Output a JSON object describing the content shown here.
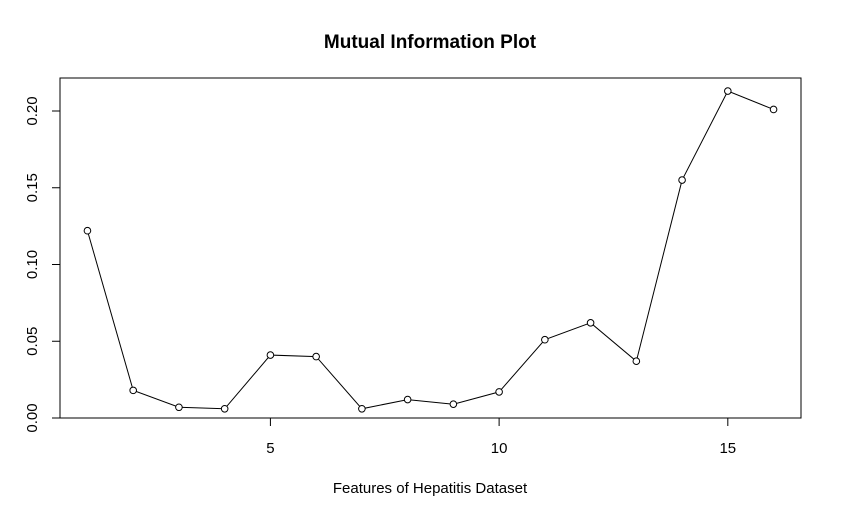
{
  "chart_data": {
    "type": "line",
    "title": "Mutual Information Plot",
    "xlabel": "Features of Hepatitis Dataset",
    "ylabel": "",
    "x": [
      1,
      2,
      3,
      4,
      5,
      6,
      7,
      8,
      9,
      10,
      11,
      12,
      13,
      14,
      15,
      16
    ],
    "series": [
      {
        "values": [
          0.122,
          0.018,
          0.007,
          0.006,
          0.041,
          0.04,
          0.006,
          0.012,
          0.009,
          0.017,
          0.051,
          0.062,
          0.037,
          0.155,
          0.213,
          0.201
        ],
        "color": "#000000",
        "marker": "open-circle"
      }
    ],
    "xticks": [
      5,
      10,
      15
    ],
    "xtick_labels": [
      "5",
      "10",
      "15"
    ],
    "yticks": [
      0.0,
      0.05,
      0.1,
      0.15,
      0.2
    ],
    "ytick_labels": [
      "0.00",
      "0.05",
      "0.10",
      "0.15",
      "0.20"
    ],
    "xlim": [
      0.4,
      16.6
    ],
    "ylim": [
      0.0,
      0.2215
    ],
    "grid": false,
    "legend": "none"
  }
}
